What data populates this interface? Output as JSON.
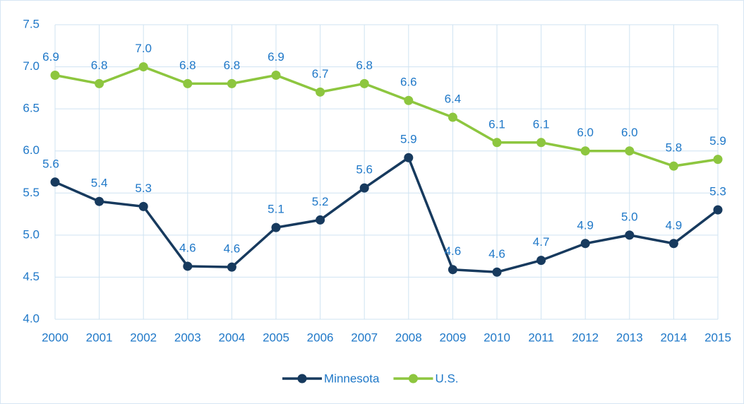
{
  "chart_data": {
    "type": "line",
    "categories": [
      "2000",
      "2001",
      "2002",
      "2003",
      "2004",
      "2005",
      "2006",
      "2007",
      "2008",
      "2009",
      "2010",
      "2011",
      "2012",
      "2013",
      "2014",
      "2015"
    ],
    "series": [
      {
        "name": "Minnesota",
        "color": "#173a5e",
        "values": [
          5.63,
          5.4,
          5.34,
          4.63,
          4.62,
          5.09,
          5.18,
          5.56,
          5.92,
          4.59,
          4.56,
          4.7,
          4.9,
          5.0,
          4.9,
          5.3
        ],
        "value_labels": [
          "5.6",
          "5.4",
          "5.3",
          "4.6",
          "4.6",
          "5.1",
          "5.2",
          "5.6",
          "5.9",
          "4.6",
          "4.6",
          "4.7",
          "4.9",
          "5.0",
          "4.9",
          "5.3"
        ]
      },
      {
        "name": "U.S.",
        "color": "#8dc63f",
        "values": [
          6.9,
          6.8,
          7.0,
          6.8,
          6.8,
          6.9,
          6.7,
          6.8,
          6.6,
          6.4,
          6.1,
          6.1,
          6.0,
          6.0,
          5.82,
          5.9
        ],
        "value_labels": [
          "6.9",
          "6.8",
          "7.0",
          "6.8",
          "6.8",
          "6.9",
          "6.7",
          "6.8",
          "6.6",
          "6.4",
          "6.1",
          "6.1",
          "6.0",
          "6.0",
          "5.8",
          "5.9"
        ]
      }
    ],
    "ylim": [
      4.0,
      7.5
    ],
    "yticks": [
      {
        "value": 4.0,
        "label": "4.0"
      },
      4.5,
      {
        "value": 5.0,
        "label": "5.0"
      },
      5.5,
      {
        "value": 6.0,
        "label": "6.0"
      },
      6.5,
      {
        "value": 7.0,
        "label": "7.0"
      },
      7.5
    ],
    "grid": true,
    "legend": "bottom"
  }
}
